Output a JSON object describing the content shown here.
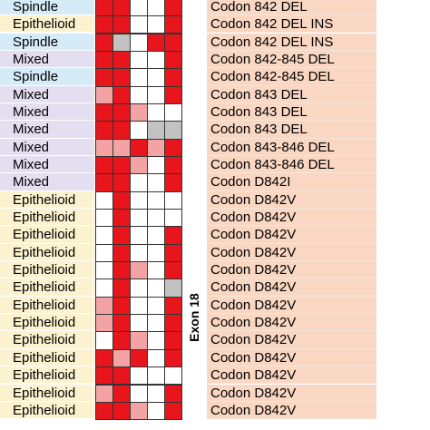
{
  "rows": [
    {
      "type": "Spindle",
      "mutation": "Codon 842 DEL"
    },
    {
      "type": "Epithelioid",
      "mutation": "Codon 842 DEL INS"
    },
    {
      "type": "Spindle",
      "mutation": "Codon 842 DEL INS"
    },
    {
      "type": "Mixed",
      "mutation": "Codon 842-845 DEL"
    },
    {
      "type": "Spindle",
      "mutation": "Codon 842-845 DEL"
    },
    {
      "type": "Mixed",
      "mutation": "Codon 843 DEL"
    },
    {
      "type": "Mixed",
      "mutation": "Codon 843 DEL"
    },
    {
      "type": "Mixed",
      "mutation": "Codon 843 DEL"
    },
    {
      "type": "Mixed",
      "mutation": "Codon 843-846 DEL"
    },
    {
      "type": "Mixed",
      "mutation": "Codon 843-846 DEL"
    },
    {
      "type": "Mixed",
      "mutation": "Codon D842I"
    },
    {
      "type": "Epithelioid",
      "mutation": "Codon D842V"
    },
    {
      "type": "Epithelioid",
      "mutation": "Codon D842V"
    },
    {
      "type": "Epithelioid",
      "mutation": "Codon D842V"
    },
    {
      "type": "Epithelioid",
      "mutation": "Codon D842V"
    },
    {
      "type": "Epithelioid",
      "mutation": "Codon D842V"
    },
    {
      "type": "Epithelioid",
      "mutation": "Codon D842V"
    },
    {
      "type": "Epithelioid",
      "mutation": "Codon D842V"
    },
    {
      "type": "Epithelioid",
      "mutation": "Codon D842V"
    },
    {
      "type": "Epithelioid",
      "mutation": "Codon D842V"
    },
    {
      "type": "Epithelioid",
      "mutation": "Codon D842V"
    },
    {
      "type": "Epithelioid",
      "mutation": "Codon D842V"
    },
    {
      "type": "Epithelioid",
      "mutation": "Codon D842V"
    },
    {
      "type": "Epithelioid",
      "mutation": "Codon D842V"
    }
  ],
  "exon_label": "Exon 18"
}
